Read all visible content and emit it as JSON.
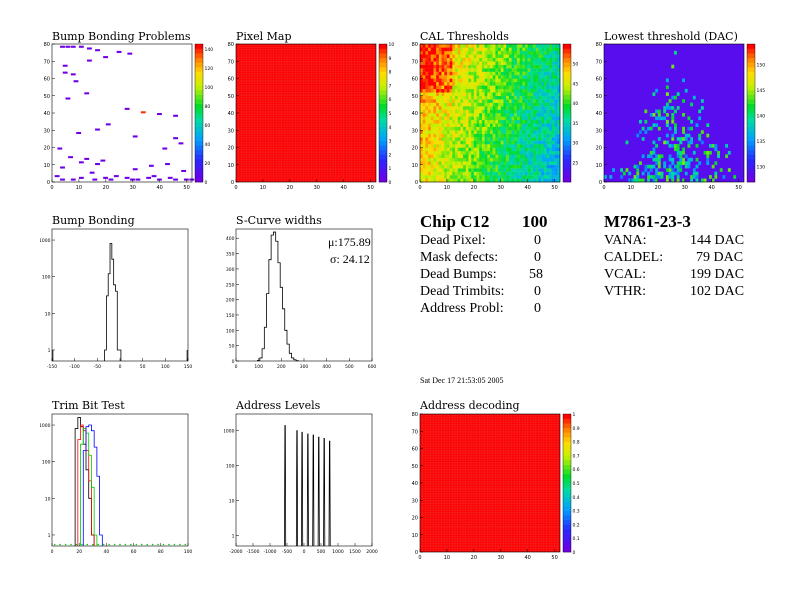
{
  "panels": {
    "bump_map": {
      "title": "Bump Bonding Problems"
    },
    "pixel_map": {
      "title": "Pixel Map"
    },
    "cal_thr": {
      "title": "CAL Thresholds"
    },
    "lowest_thr": {
      "title": "Lowest threshold (DAC)"
    },
    "bump_hist": {
      "title": "Bump Bonding"
    },
    "scurve": {
      "title": "S-Curve widths",
      "mu_label": "μ:175.89",
      "sigma_label": "σ: 24.12"
    },
    "trim": {
      "title": "Trim Bit Test"
    },
    "addr_levels": {
      "title": "Address Levels"
    },
    "addr_decode": {
      "title": "Address decoding"
    }
  },
  "summary": {
    "chip_label": "Chip C12",
    "chip_value": "100",
    "rows": [
      {
        "label": "Dead Pixel:",
        "value": "0"
      },
      {
        "label": "Mask defects:",
        "value": "0"
      },
      {
        "label": "Dead Bumps:",
        "value": "58"
      },
      {
        "label": "Dead Trimbits:",
        "value": "0"
      },
      {
        "label": "Address Probl:",
        "value": "0"
      }
    ]
  },
  "module": {
    "id": "M7861-23-3",
    "rows": [
      {
        "label": "VANA:",
        "value": "144 DAC"
      },
      {
        "label": "CALDEL:",
        "value": "79 DAC"
      },
      {
        "label": "VCAL:",
        "value": "199 DAC"
      },
      {
        "label": "VTHR:",
        "value": "102 DAC"
      }
    ]
  },
  "timestamp": "Sat Dec 17 21:53:05 2005",
  "chart_data": [
    {
      "type": "heatmap",
      "name": "bump_map",
      "xlim": [
        0,
        52
      ],
      "ylim": [
        0,
        80
      ],
      "xticks": [
        0,
        10,
        20,
        30,
        40,
        50
      ],
      "yticks": [
        0,
        10,
        20,
        30,
        40,
        50,
        60,
        70,
        80
      ],
      "zlim": [
        0,
        145
      ],
      "zticks": [
        0,
        20,
        40,
        60,
        80,
        100,
        120,
        140
      ],
      "points": [
        [
          3,
          78
        ],
        [
          5,
          78
        ],
        [
          7,
          78
        ],
        [
          10,
          78
        ],
        [
          13,
          77
        ],
        [
          16,
          76
        ],
        [
          24,
          75
        ],
        [
          28,
          74
        ],
        [
          19,
          72
        ],
        [
          13,
          70
        ],
        [
          4,
          67
        ],
        [
          4,
          63
        ],
        [
          7,
          62
        ],
        [
          8,
          58
        ],
        [
          12,
          51
        ],
        [
          5,
          48
        ],
        [
          27,
          42
        ],
        [
          33,
          40
        ],
        [
          39,
          39
        ],
        [
          45,
          38
        ],
        [
          20,
          33
        ],
        [
          16,
          30
        ],
        [
          9,
          28
        ],
        [
          30,
          26
        ],
        [
          45,
          25
        ],
        [
          47,
          22
        ],
        [
          2,
          19
        ],
        [
          41,
          19
        ],
        [
          6,
          14
        ],
        [
          12,
          13
        ],
        [
          18,
          12
        ],
        [
          10,
          11
        ],
        [
          16,
          10
        ],
        [
          42,
          10
        ],
        [
          36,
          9
        ],
        [
          3,
          8
        ],
        [
          30,
          7
        ],
        [
          48,
          6
        ],
        [
          14,
          5
        ],
        [
          1,
          3
        ],
        [
          23,
          3
        ],
        [
          37,
          3
        ],
        [
          10,
          2
        ],
        [
          19,
          2
        ],
        [
          27,
          2
        ],
        [
          35,
          2
        ],
        [
          43,
          2
        ],
        [
          3,
          1
        ],
        [
          7,
          1
        ],
        [
          15,
          1
        ],
        [
          21,
          1
        ],
        [
          29,
          1
        ],
        [
          31,
          1
        ],
        [
          39,
          1
        ],
        [
          45,
          1
        ],
        [
          49,
          1
        ],
        [
          51,
          1
        ]
      ],
      "point_values": [
        0,
        0,
        0,
        0,
        0,
        0,
        0,
        0,
        0,
        0,
        0,
        0,
        0,
        0,
        0,
        0,
        0,
        140,
        0,
        0,
        0,
        0,
        0,
        0,
        0,
        0,
        0,
        0,
        0,
        0,
        0,
        0,
        0,
        0,
        0,
        0,
        0,
        0,
        0,
        0,
        0,
        0,
        0,
        0,
        0,
        0,
        0,
        0,
        0,
        0,
        0,
        0,
        0,
        0,
        0,
        0,
        0
      ]
    },
    {
      "type": "heatmap",
      "name": "pixel_map",
      "xlim": [
        0,
        52
      ],
      "ylim": [
        0,
        80
      ],
      "xticks": [
        0,
        10,
        20,
        30,
        40,
        50
      ],
      "yticks": [
        0,
        10,
        20,
        30,
        40,
        50,
        60,
        70,
        80
      ],
      "zlim": [
        0,
        10
      ],
      "zticks": [
        0,
        1,
        2,
        3,
        4,
        5,
        6,
        7,
        8,
        9,
        10
      ],
      "uniform_value": 10
    },
    {
      "type": "heatmap",
      "name": "cal_thresholds",
      "xlim": [
        0,
        52
      ],
      "ylim": [
        0,
        80
      ],
      "xticks": [
        0,
        10,
        20,
        30,
        40,
        50
      ],
      "yticks": [
        0,
        10,
        20,
        30,
        40,
        50,
        60,
        70,
        80
      ],
      "zlim": [
        20,
        55
      ],
      "zticks": [
        25,
        30,
        35,
        40,
        45,
        50
      ],
      "description_free": true
    },
    {
      "type": "heatmap",
      "name": "lowest_threshold",
      "xlim": [
        0,
        52
      ],
      "ylim": [
        0,
        80
      ],
      "xticks": [
        0,
        10,
        20,
        30,
        40,
        50
      ],
      "yticks": [
        0,
        10,
        20,
        30,
        40,
        50,
        60,
        70,
        80
      ],
      "zlim": [
        127,
        154
      ],
      "zticks": [
        130,
        135,
        140,
        145,
        150
      ]
    },
    {
      "type": "line",
      "name": "bump_bonding_hist",
      "xlim": [
        -150,
        150
      ],
      "log_y": true,
      "ylim": [
        0.5,
        2000
      ],
      "xticks": [
        -150,
        -100,
        -50,
        0,
        50,
        100,
        150
      ],
      "yticks": [
        1,
        10,
        100,
        1000
      ],
      "x": [
        -32,
        -28,
        -24,
        -20,
        -16,
        -12,
        -8,
        -4,
        0
      ],
      "values": [
        1,
        30,
        120,
        800,
        300,
        60,
        40,
        1,
        1
      ]
    },
    {
      "type": "line",
      "name": "scurve_widths",
      "xlim": [
        0,
        600
      ],
      "ylim": [
        0,
        430
      ],
      "xticks": [
        0,
        100,
        200,
        300,
        400,
        500,
        600
      ],
      "yticks": [
        0,
        50,
        100,
        150,
        200,
        250,
        300,
        350,
        400
      ],
      "x": [
        100,
        110,
        120,
        130,
        140,
        150,
        160,
        170,
        180,
        190,
        200,
        210,
        220,
        230,
        240,
        250,
        260,
        270
      ],
      "values": [
        2,
        10,
        40,
        110,
        220,
        330,
        410,
        420,
        390,
        320,
        240,
        170,
        100,
        55,
        25,
        10,
        4,
        1
      ]
    },
    {
      "type": "line",
      "name": "trim_bit_test",
      "xlim": [
        0,
        100
      ],
      "log_y": true,
      "ylim": [
        0.5,
        2000
      ],
      "xticks": [
        0,
        20,
        40,
        60,
        80,
        100
      ],
      "yticks": [
        1,
        10,
        100,
        1000
      ],
      "series": [
        {
          "color": "#000000",
          "x": [
            18,
            20,
            22,
            24,
            26,
            28,
            30
          ],
          "values": [
            800,
            1600,
            900,
            300,
            60,
            10,
            1
          ]
        },
        {
          "color": "#ff0000",
          "x": [
            20,
            22,
            24,
            26,
            28,
            30
          ],
          "values": [
            400,
            1000,
            700,
            200,
            30,
            1
          ]
        },
        {
          "color": "#00cc00",
          "x": [
            22,
            24,
            26,
            28,
            30,
            32
          ],
          "values": [
            300,
            800,
            600,
            150,
            20,
            1
          ]
        },
        {
          "color": "#0000ff",
          "x": [
            24,
            26,
            28,
            30,
            32,
            34,
            36
          ],
          "values": [
            200,
            900,
            1000,
            700,
            250,
            40,
            1
          ]
        }
      ]
    },
    {
      "type": "line",
      "name": "address_levels",
      "xlim": [
        -2000,
        2000
      ],
      "log_y": true,
      "ylim": [
        0.5,
        3000
      ],
      "xticks": [
        -2000,
        -1500,
        -1000,
        -500,
        0,
        500,
        1000,
        1500,
        2000
      ],
      "yticks": [
        1,
        10,
        100,
        1000
      ],
      "x": [
        -550,
        -200,
        -50,
        120,
        280,
        440,
        600,
        760
      ],
      "values": [
        1400,
        1000,
        900,
        800,
        750,
        650,
        600,
        500
      ]
    },
    {
      "type": "heatmap",
      "name": "address_decoding",
      "xlim": [
        0,
        52
      ],
      "ylim": [
        0,
        80
      ],
      "xticks": [
        0,
        10,
        20,
        30,
        40,
        50
      ],
      "yticks": [
        0,
        10,
        20,
        30,
        40,
        50,
        60,
        70,
        80
      ],
      "zlim": [
        0,
        1
      ],
      "zticks": [
        0,
        0.1,
        0.2,
        0.3,
        0.4,
        0.5,
        0.6,
        0.7,
        0.8,
        0.9,
        1
      ],
      "uniform_value": 1
    }
  ]
}
